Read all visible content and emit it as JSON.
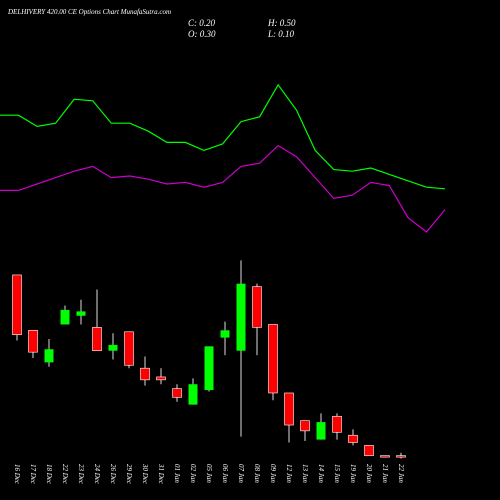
{
  "chart_data": {
    "type": "candlestick",
    "title": "DELHIVERY 420.00 CE Options Chart MunafaSutra.com",
    "info": {
      "close": "C: 0.20",
      "open": "O: 0.30",
      "high": "H: 0.50",
      "low": "L: 0.10"
    },
    "categories": [
      "16 Dec",
      "17 Dec",
      "18 Dec",
      "22 Dec",
      "23 Dec",
      "24 Dec",
      "26 Dec",
      "29 Dec",
      "30 Dec",
      "31 Dec",
      "01 Jan",
      "02 Jan",
      "05 Jan",
      "06 Jan",
      "07 Jan",
      "08 Jan",
      "09 Jan",
      "12 Jan",
      "13 Jan",
      "14 Jan",
      "15 Jan",
      "19 Jan",
      "20 Jan",
      "21 Jan",
      "22 Jan"
    ],
    "open": [
      12.7,
      8.9,
      6.7,
      9.3,
      9.9,
      9.1,
      7.5,
      8.8,
      6.3,
      5.7,
      4.9,
      3.8,
      4.8,
      8.4,
      7.5,
      11.9,
      9.3,
      4.6,
      2.7,
      1.4,
      3.0,
      1.7,
      1.0,
      0.3,
      0.3
    ],
    "high": [
      12.7,
      8.9,
      8.3,
      10.6,
      11.0,
      11.7,
      8.7,
      8.8,
      7.1,
      6.3,
      5.2,
      5.6,
      7.8,
      9.5,
      13.7,
      12.1,
      9.3,
      4.6,
      2.7,
      3.2,
      3.2,
      2.1,
      1.0,
      0.3,
      0.5
    ],
    "low": [
      8.2,
      7.0,
      6.4,
      9.3,
      9.3,
      7.5,
      6.9,
      6.3,
      5.1,
      5.2,
      4.0,
      3.8,
      4.7,
      7.2,
      1.6,
      7.2,
      4.1,
      1.2,
      1.3,
      1.4,
      1.4,
      1.0,
      0.3,
      0.2,
      0.1
    ],
    "close": [
      8.6,
      7.4,
      7.6,
      10.3,
      10.2,
      7.5,
      7.9,
      6.5,
      5.5,
      5.5,
      4.3,
      5.2,
      7.8,
      8.9,
      12.1,
      9.1,
      4.6,
      2.4,
      2.0,
      2.6,
      1.9,
      1.2,
      0.3,
      0.2,
      0.2
    ],
    "up_color": "#00ff00",
    "down_color": "#ff0000",
    "ylim": [
      0,
      14
    ],
    "line_ylim": [
      0,
      10
    ],
    "series": [
      {
        "color": "#00ff00",
        "values": [
          7.8,
          7.8,
          7.1,
          7.3,
          8.8,
          8.7,
          7.3,
          7.3,
          6.8,
          6.1,
          6.1,
          5.6,
          6.0,
          7.4,
          7.7,
          9.7,
          8.1,
          5.6,
          4.4,
          4.3,
          4.5,
          4.1,
          3.7,
          3.3,
          3.2
        ]
      },
      {
        "color": "#cc00cc",
        "values": [
          3.1,
          3.1,
          3.5,
          3.9,
          4.3,
          4.6,
          3.9,
          4.0,
          3.8,
          3.5,
          3.6,
          3.3,
          3.6,
          4.6,
          4.8,
          5.9,
          5.2,
          3.9,
          2.6,
          2.8,
          3.6,
          3.4,
          1.4,
          0.5,
          1.9
        ]
      }
    ]
  }
}
